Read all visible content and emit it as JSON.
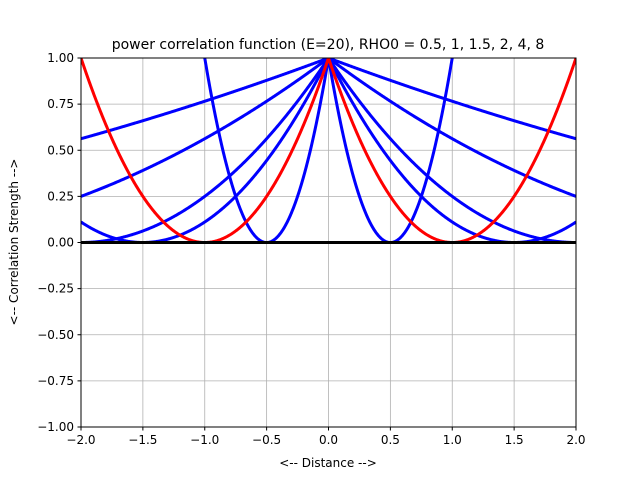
{
  "chart_data": {
    "type": "line",
    "title": "power correlation function (E=20), RHO0 = 0.5, 1, 1.5, 2, 4, 8",
    "xlabel": "<-- Distance -->",
    "ylabel": "<-- Correlation Strength -->",
    "xlim": [
      -2.0,
      2.0
    ],
    "ylim": [
      -1.0,
      1.0
    ],
    "grid": true,
    "xticks": [
      "−2.0",
      "−1.5",
      "−1.0",
      "−0.5",
      "0.0",
      "0.5",
      "1.0",
      "1.5",
      "2.0"
    ],
    "xtick_values": [
      -2.0,
      -1.5,
      -1.0,
      -0.5,
      0.0,
      0.5,
      1.0,
      1.5,
      2.0
    ],
    "yticks": [
      "−1.00",
      "−0.75",
      "−0.50",
      "−0.25",
      "0.00",
      "0.25",
      "0.50",
      "0.75",
      "1.00"
    ],
    "ytick_values": [
      -1.0,
      -0.75,
      -0.5,
      -0.25,
      0.0,
      0.25,
      0.5,
      0.75,
      1.0
    ],
    "curve_formula": "(1 - |d|/rho0)^2",
    "series": [
      {
        "name": "rho0=0.5",
        "rho0": 0.5,
        "color": "#0000ff"
      },
      {
        "name": "rho0=1.5",
        "rho0": 1.5,
        "color": "#0000ff"
      },
      {
        "name": "rho0=2",
        "rho0": 2,
        "color": "#0000ff"
      },
      {
        "name": "rho0=4",
        "rho0": 4,
        "color": "#0000ff"
      },
      {
        "name": "rho0=8",
        "rho0": 8,
        "color": "#0000ff"
      },
      {
        "name": "rho0=1",
        "rho0": 1,
        "color": "#ff0000"
      },
      {
        "name": "zero",
        "constant": 0,
        "color": "#000000"
      }
    ]
  }
}
